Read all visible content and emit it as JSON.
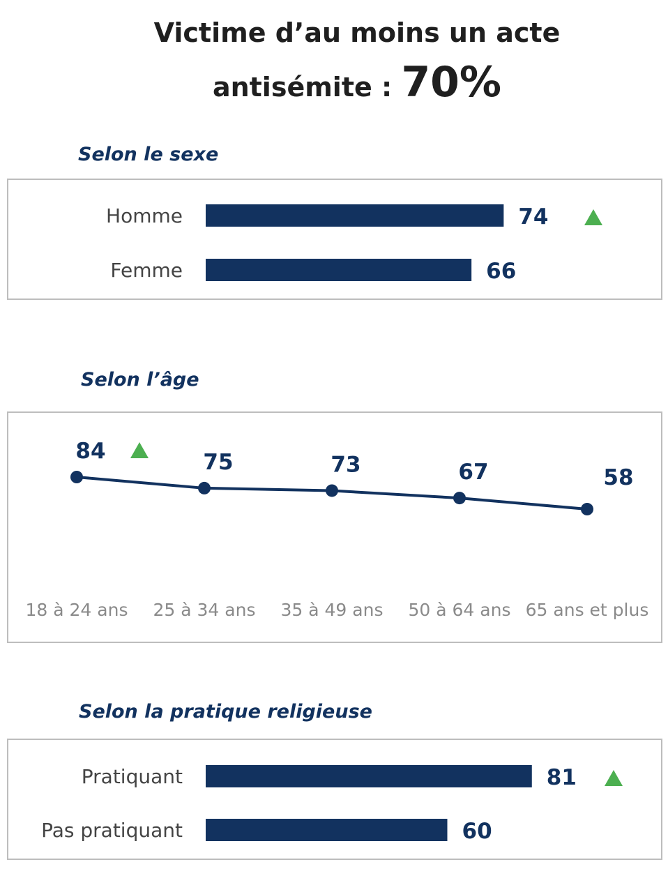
{
  "colors": {
    "navy": "#12325f",
    "up": "#4caf50",
    "border": "#bdbdbd"
  },
  "title": {
    "line1": "Victime d’au moins un acte",
    "line2": "antisémite : ",
    "value": "70%"
  },
  "chart_data": [
    {
      "type": "bar",
      "title": "Selon le sexe",
      "categories": [
        "Homme",
        "Femme"
      ],
      "values": [
        74,
        66
      ],
      "markers": [
        "up",
        null
      ],
      "unit": "%"
    },
    {
      "type": "line",
      "title": "Selon l’âge",
      "categories": [
        "18 à 24 ans",
        "25 à 34 ans",
        "35 à 49 ans",
        "50 à 64 ans",
        "65 ans et plus"
      ],
      "values": [
        84,
        75,
        73,
        67,
        58
      ],
      "markers": [
        "up",
        null,
        null,
        null,
        null
      ],
      "unit": "%"
    },
    {
      "type": "bar",
      "title": "Selon la pratique religieuse",
      "categories": [
        "Pratiquant",
        "Pas pratiquant"
      ],
      "values": [
        81,
        60
      ],
      "markers": [
        "up",
        null
      ],
      "unit": "%"
    }
  ]
}
